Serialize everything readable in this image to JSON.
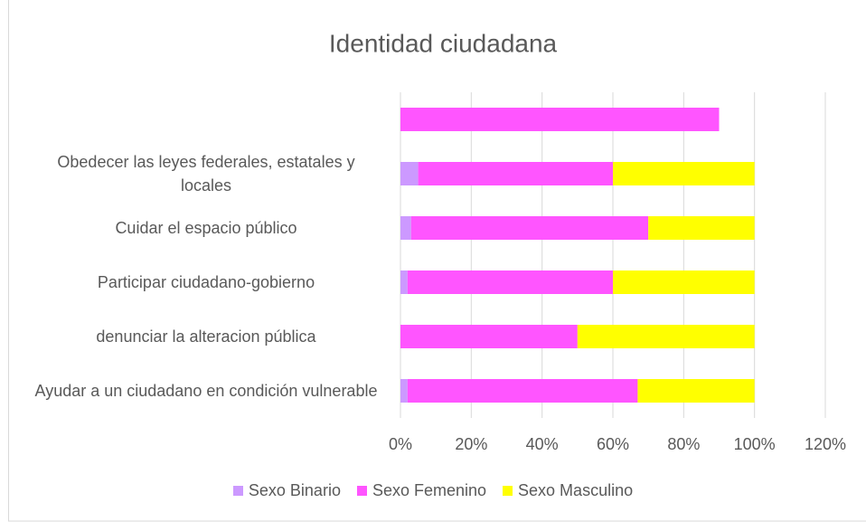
{
  "chart_data": {
    "type": "stacked_barh",
    "title": "Identidad ciudadana",
    "categories": [
      null,
      "Obedecer las leyes federales, estatales y locales",
      "Cuidar el espacio público",
      "Participar ciudadano-gobierno",
      "denunciar la alteracion pública",
      "Ayudar a un ciudadano en condición vulnerable"
    ],
    "series": [
      {
        "name": "Sexo Binario",
        "color": "#cc99ff",
        "values": [
          0,
          5,
          3,
          2,
          0,
          2
        ]
      },
      {
        "name": "Sexo Femenino",
        "color": "#ff55ff",
        "values": [
          90,
          55,
          67,
          58,
          50,
          65
        ]
      },
      {
        "name": "Sexo Masculino",
        "color": "#ffff00",
        "values": [
          0,
          40,
          30,
          40,
          50,
          33
        ]
      }
    ],
    "xlim": [
      0,
      120
    ],
    "xticks": [
      {
        "value": 0,
        "label": "0%"
      },
      {
        "value": 20,
        "label": "20%"
      },
      {
        "value": 40,
        "label": "40%"
      },
      {
        "value": 60,
        "label": "60%"
      },
      {
        "value": 80,
        "label": "80%"
      },
      {
        "value": 100,
        "label": "100%"
      },
      {
        "value": 120,
        "label": "120%"
      }
    ],
    "grid": true,
    "legend": "bottom"
  }
}
